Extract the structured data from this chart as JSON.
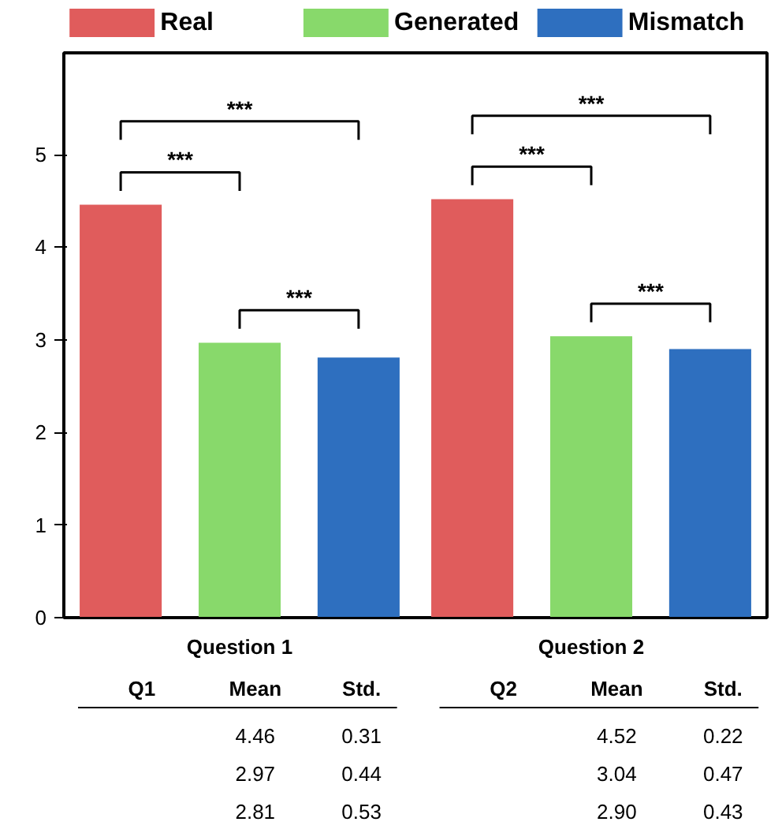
{
  "chart_data": {
    "type": "bar",
    "categories": [
      "Question 1",
      "Question 2"
    ],
    "series": [
      {
        "name": "Real",
        "color": "#e05c5c",
        "values": [
          4.46,
          4.52
        ],
        "value_labels": [
          "4.46",
          "4.52"
        ]
      },
      {
        "name": "Generated",
        "color": "#88d96b",
        "values": [
          2.97,
          3.04
        ],
        "value_labels": [
          "2.97",
          "3.04"
        ]
      },
      {
        "name": "Mismatch",
        "color": "#2e6fbf",
        "values": [
          2.81,
          2.9
        ],
        "value_labels": [
          "2.81",
          "2.90"
        ]
      }
    ],
    "ylim": [
      0,
      6.1
    ],
    "yticks": [
      0,
      1,
      2,
      3,
      4,
      5
    ],
    "grid": false,
    "legend": "top",
    "annotations": [
      "***",
      "***",
      "***",
      "***",
      "***",
      "***",
      "Q1",
      "Mean",
      "Std.",
      "0.31",
      "0.44",
      "0.53",
      "Q2",
      "Mean",
      "Std.",
      "0.22",
      "0.47",
      "0.43"
    ]
  }
}
